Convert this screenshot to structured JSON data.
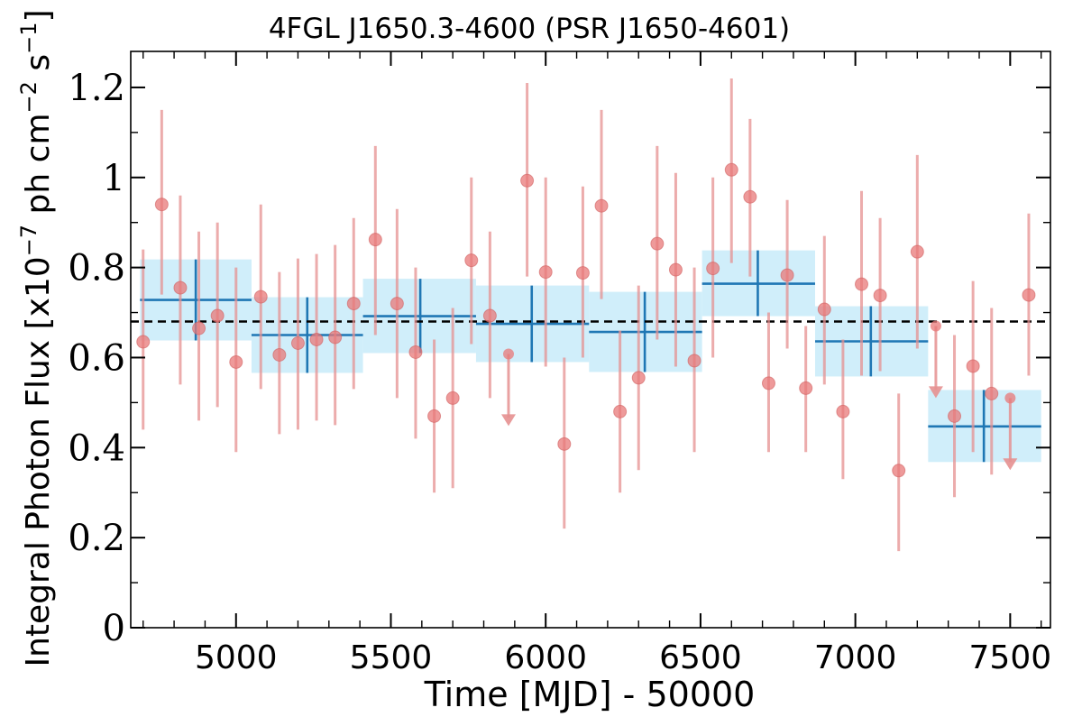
{
  "chart_data": {
    "type": "scatter",
    "title": "4FGL J1650.3-4600 (PSR J1650-4601)",
    "xlabel": "Time [MJD] - 50000",
    "ylabel": "Integral Photon Flux [x10^-7 ph cm^-2 s^-1]",
    "ylabel_parts": {
      "pre": "Integral Photon Flux [x10",
      "exp1": "−7",
      "mid": " ph cm",
      "exp2": "−2",
      "mid2": " s",
      "exp3": "−1",
      "post": "]"
    },
    "xlim": [
      4660,
      7630
    ],
    "ylim": [
      0,
      1.28
    ],
    "x_ticks": [
      5000,
      5500,
      6000,
      6500,
      7000,
      7500
    ],
    "x_tick_labels": [
      "5000",
      "5500",
      "6000",
      "6500",
      "7000",
      "7500"
    ],
    "y_ticks": [
      0,
      0.2,
      0.4,
      0.6,
      0.8,
      1.0,
      1.2
    ],
    "y_tick_labels": [
      "0",
      "0.2",
      "0.4",
      "0.6",
      "0.8",
      "1",
      "1.2"
    ],
    "grid": false,
    "legend": "none",
    "colors": {
      "points": "#e87878",
      "error_bars": "#e59090",
      "bins_fill": "#d0eefa",
      "bins_line": "#1f77b4",
      "mean_line": "#000000"
    },
    "mean_flux": 0.68,
    "series": [
      {
        "kind": "monthly_points",
        "points": [
          {
            "x": 4700,
            "y": 0.635,
            "lo": 0.44,
            "hi": 0.84
          },
          {
            "x": 4760,
            "y": 0.94,
            "lo": 0.74,
            "hi": 1.15
          },
          {
            "x": 4820,
            "y": 0.755,
            "lo": 0.54,
            "hi": 0.96
          },
          {
            "x": 4880,
            "y": 0.665,
            "lo": 0.46,
            "hi": 0.88
          },
          {
            "x": 4940,
            "y": 0.693,
            "lo": 0.49,
            "hi": 0.9
          },
          {
            "x": 5000,
            "y": 0.59,
            "lo": 0.39,
            "hi": 0.8
          },
          {
            "x": 5080,
            "y": 0.735,
            "lo": 0.53,
            "hi": 0.94
          },
          {
            "x": 5140,
            "y": 0.606,
            "lo": 0.43,
            "hi": 0.79
          },
          {
            "x": 5200,
            "y": 0.632,
            "lo": 0.44,
            "hi": 0.82
          },
          {
            "x": 5260,
            "y": 0.64,
            "lo": 0.46,
            "hi": 0.83
          },
          {
            "x": 5320,
            "y": 0.645,
            "lo": 0.45,
            "hi": 0.85
          },
          {
            "x": 5380,
            "y": 0.72,
            "lo": 0.53,
            "hi": 0.91
          },
          {
            "x": 5450,
            "y": 0.862,
            "lo": 0.65,
            "hi": 1.07
          },
          {
            "x": 5520,
            "y": 0.72,
            "lo": 0.51,
            "hi": 0.93
          },
          {
            "x": 5580,
            "y": 0.612,
            "lo": 0.42,
            "hi": 0.8
          },
          {
            "x": 5640,
            "y": 0.47,
            "lo": 0.3,
            "hi": 0.64
          },
          {
            "x": 5700,
            "y": 0.51,
            "lo": 0.31,
            "hi": 0.71
          },
          {
            "x": 5760,
            "y": 0.816,
            "lo": 0.63,
            "hi": 1.0
          },
          {
            "x": 5820,
            "y": 0.693,
            "lo": 0.51,
            "hi": 0.88
          },
          {
            "x": 5880,
            "y": 0.608,
            "upper_limit": true
          },
          {
            "x": 5940,
            "y": 0.993,
            "lo": 0.78,
            "hi": 1.21
          },
          {
            "x": 6000,
            "y": 0.79,
            "lo": 0.58,
            "hi": 1.0
          },
          {
            "x": 6060,
            "y": 0.408,
            "lo": 0.22,
            "hi": 0.6
          },
          {
            "x": 6120,
            "y": 0.788,
            "lo": 0.6,
            "hi": 0.98
          },
          {
            "x": 6180,
            "y": 0.937,
            "lo": 0.73,
            "hi": 1.15
          },
          {
            "x": 6240,
            "y": 0.48,
            "lo": 0.3,
            "hi": 0.66
          },
          {
            "x": 6300,
            "y": 0.555,
            "lo": 0.35,
            "hi": 0.76
          },
          {
            "x": 6360,
            "y": 0.853,
            "lo": 0.64,
            "hi": 1.07
          },
          {
            "x": 6420,
            "y": 0.795,
            "lo": 0.58,
            "hi": 1.01
          },
          {
            "x": 6480,
            "y": 0.593,
            "lo": 0.39,
            "hi": 0.8
          },
          {
            "x": 6540,
            "y": 0.798,
            "lo": 0.6,
            "hi": 1.0
          },
          {
            "x": 6600,
            "y": 1.017,
            "lo": 0.81,
            "hi": 1.22
          },
          {
            "x": 6660,
            "y": 0.957,
            "lo": 0.78,
            "hi": 1.13
          },
          {
            "x": 6720,
            "y": 0.543,
            "lo": 0.39,
            "hi": 0.7
          },
          {
            "x": 6780,
            "y": 0.783,
            "lo": 0.62,
            "hi": 0.95
          },
          {
            "x": 6840,
            "y": 0.532,
            "lo": 0.39,
            "hi": 0.67
          },
          {
            "x": 6900,
            "y": 0.707,
            "lo": 0.54,
            "hi": 0.87
          },
          {
            "x": 6960,
            "y": 0.48,
            "lo": 0.33,
            "hi": 0.64
          },
          {
            "x": 7020,
            "y": 0.763,
            "lo": 0.56,
            "hi": 0.97
          },
          {
            "x": 7080,
            "y": 0.738,
            "lo": 0.57,
            "hi": 0.91
          },
          {
            "x": 7140,
            "y": 0.349,
            "lo": 0.17,
            "hi": 0.52
          },
          {
            "x": 7200,
            "y": 0.835,
            "lo": 0.62,
            "hi": 1.05
          },
          {
            "x": 7260,
            "y": 0.67,
            "upper_limit": true
          },
          {
            "x": 7320,
            "y": 0.47,
            "lo": 0.29,
            "hi": 0.65
          },
          {
            "x": 7380,
            "y": 0.581,
            "lo": 0.39,
            "hi": 0.77
          },
          {
            "x": 7440,
            "y": 0.52,
            "lo": 0.34,
            "hi": 0.71
          },
          {
            "x": 7500,
            "y": 0.51,
            "upper_limit": true
          },
          {
            "x": 7560,
            "y": 0.739,
            "lo": 0.56,
            "hi": 0.92
          }
        ]
      },
      {
        "kind": "yearly_bins",
        "bins": [
          {
            "x0": 4690,
            "x1": 5050,
            "x": 4870,
            "y": 0.728,
            "lo": 0.638,
            "hi": 0.818
          },
          {
            "x0": 5050,
            "x1": 5410,
            "x": 5230,
            "y": 0.65,
            "lo": 0.566,
            "hi": 0.734
          },
          {
            "x0": 5410,
            "x1": 5775,
            "x": 5595,
            "y": 0.692,
            "lo": 0.61,
            "hi": 0.775
          },
          {
            "x0": 5775,
            "x1": 6140,
            "x": 5955,
            "y": 0.675,
            "lo": 0.59,
            "hi": 0.76
          },
          {
            "x0": 6140,
            "x1": 6505,
            "x": 6320,
            "y": 0.657,
            "lo": 0.568,
            "hi": 0.746
          },
          {
            "x0": 6505,
            "x1": 6870,
            "x": 6685,
            "y": 0.764,
            "lo": 0.692,
            "hi": 0.838
          },
          {
            "x0": 6870,
            "x1": 7235,
            "x": 7050,
            "y": 0.636,
            "lo": 0.558,
            "hi": 0.714
          },
          {
            "x0": 7235,
            "x1": 7600,
            "x": 7415,
            "y": 0.447,
            "lo": 0.368,
            "hi": 0.528
          }
        ]
      }
    ]
  }
}
